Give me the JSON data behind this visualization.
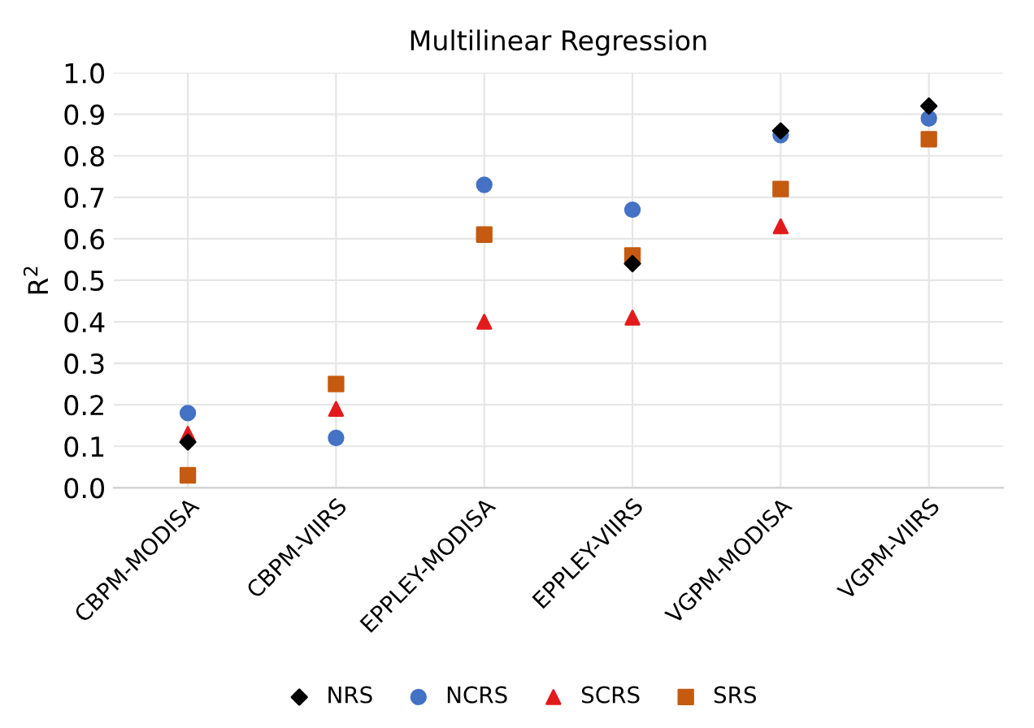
{
  "chart_data": {
    "type": "scatter",
    "title": "Multilinear Regression",
    "ylabel": "R$^{2}$",
    "categories": [
      "CBPM-MODISA",
      "CBPM-VIIRS",
      "EPPLEY-MODISA",
      "EPPLEY-VIIRS",
      "VGPM-MODISA",
      "VGPM-VIIRS"
    ],
    "series": [
      {
        "name": "NRS",
        "color": "#000000",
        "marker": "diamond",
        "values": [
          0.11,
          null,
          null,
          0.54,
          0.86,
          0.92
        ]
      },
      {
        "name": "NCRS",
        "color": "#4472c4",
        "marker": "circle",
        "values": [
          0.18,
          0.12,
          0.73,
          0.67,
          0.85,
          0.89
        ]
      },
      {
        "name": "SCRS",
        "color": "#e31a1c",
        "marker": "triangle",
        "values": [
          0.13,
          0.19,
          0.4,
          0.41,
          0.63,
          null
        ]
      },
      {
        "name": "SRS",
        "color": "#c55a11",
        "marker": "square",
        "values": [
          0.03,
          0.25,
          0.61,
          0.56,
          0.72,
          0.84
        ]
      }
    ],
    "ylim": [
      0.0,
      1.0
    ],
    "yticks": [
      {
        "value": 0.0,
        "label": "0.0"
      },
      {
        "value": 0.1,
        "label": "0.1"
      },
      {
        "value": 0.2,
        "label": "0.2"
      },
      {
        "value": 0.3,
        "label": "0.3"
      },
      {
        "value": 0.4,
        "label": "0.4"
      },
      {
        "value": 0.5,
        "label": "0.5"
      },
      {
        "value": 0.6,
        "label": "0.6"
      },
      {
        "value": 0.7,
        "label": "0.7"
      },
      {
        "value": 0.8,
        "label": "0.8"
      },
      {
        "value": 0.9,
        "label": "0.9"
      },
      {
        "value": 1.0,
        "label": "1.0"
      }
    ],
    "grid": true,
    "legend": "bottom"
  }
}
